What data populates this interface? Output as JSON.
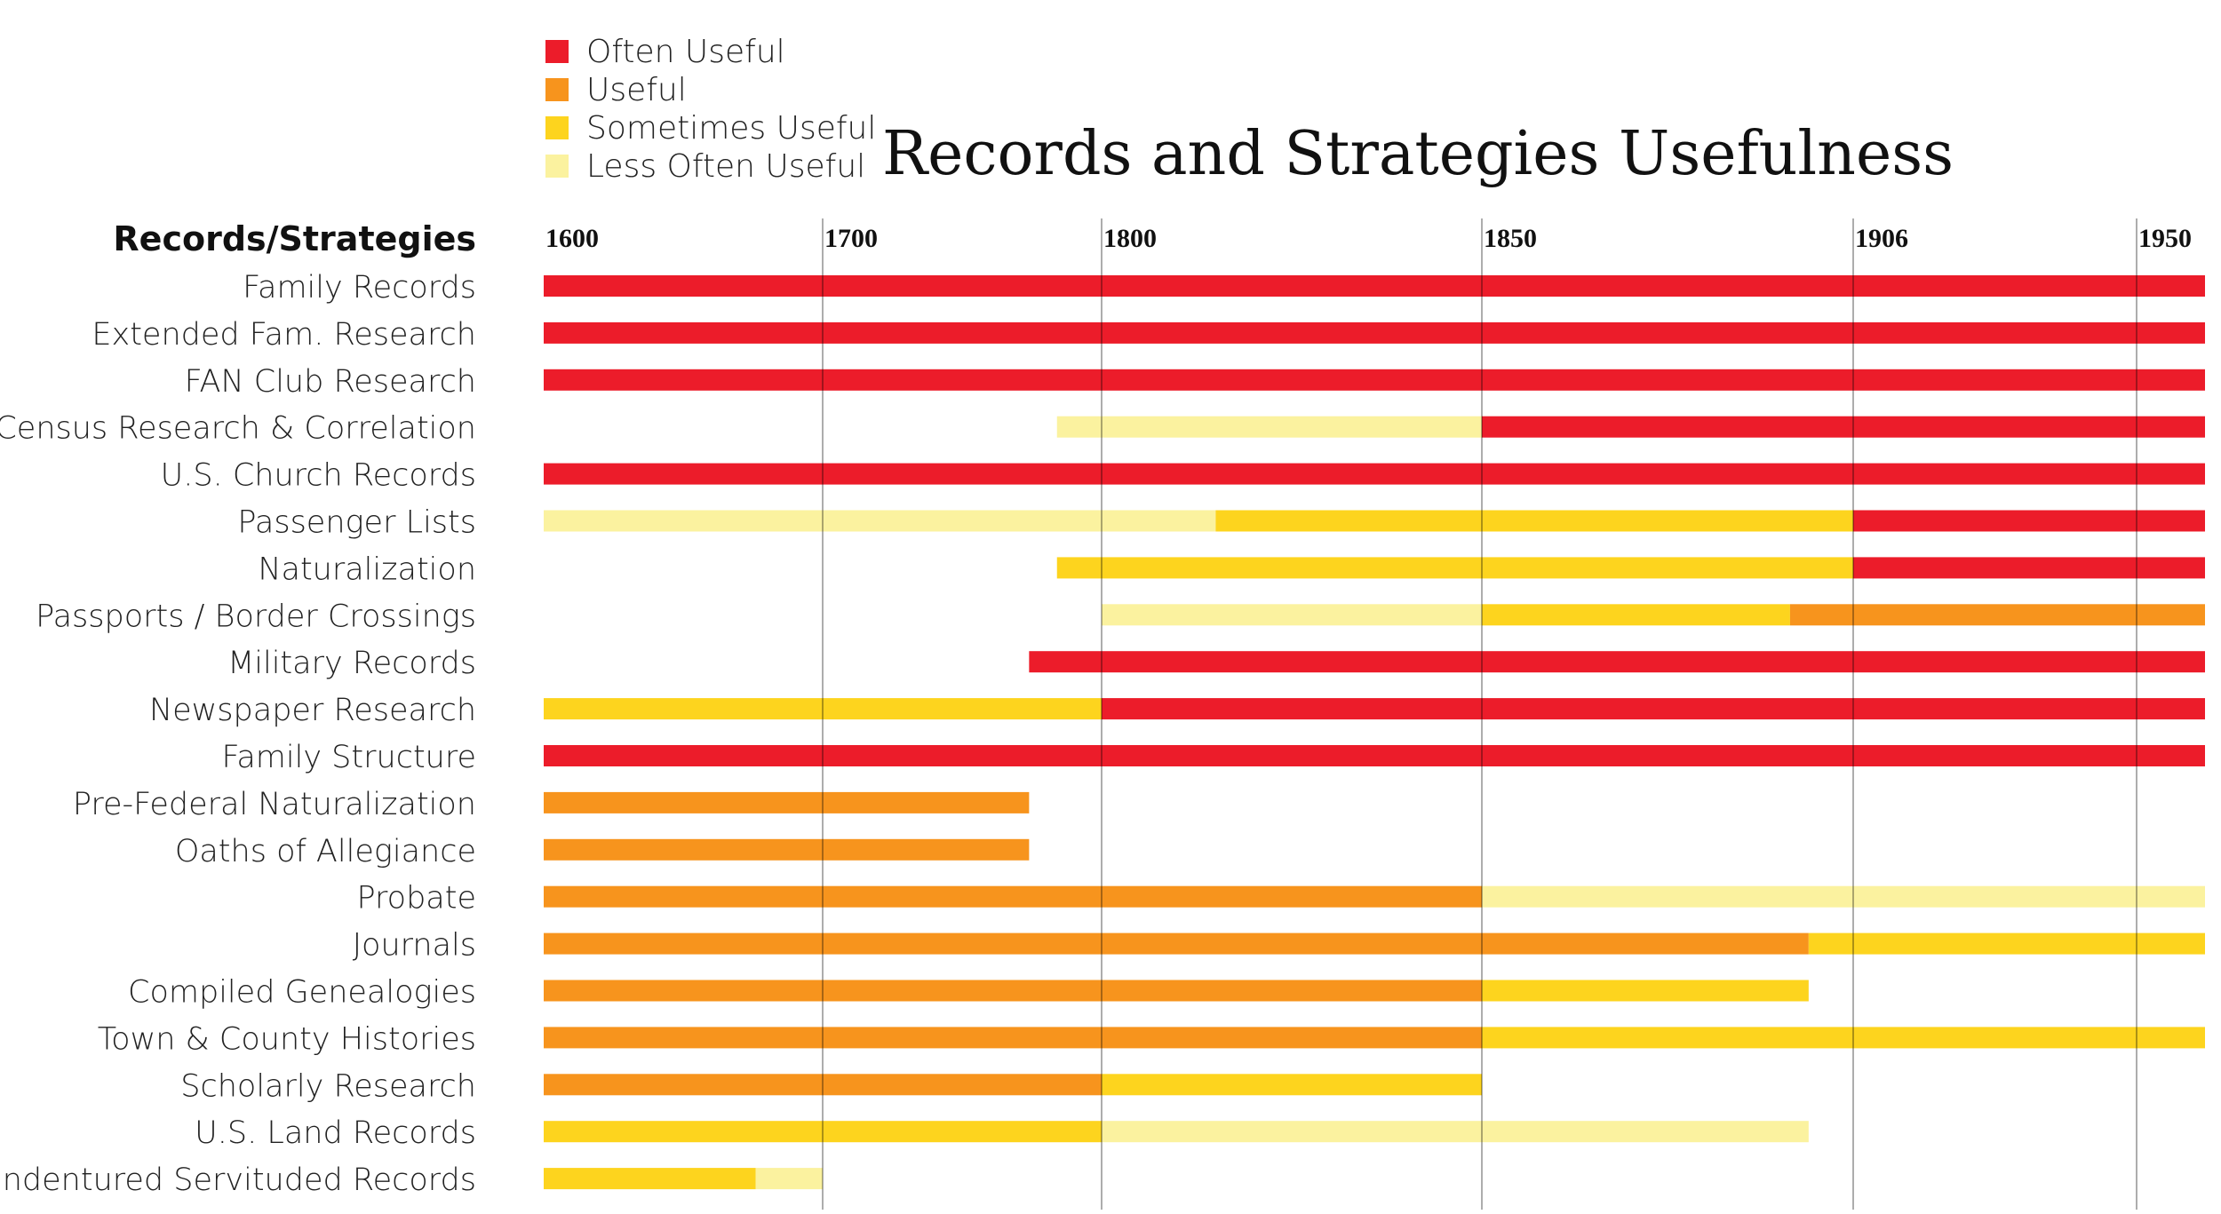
{
  "chart_data": {
    "type": "gantt",
    "title": "Records and Strategies Usefulness",
    "header_label": "Records/Strategies",
    "ticks": [
      {
        "label": "1600",
        "pos": 0
      },
      {
        "label": "1700",
        "pos": 1
      },
      {
        "label": "1800",
        "pos": 2
      },
      {
        "label": "1850",
        "pos": 3
      },
      {
        "label": "1906",
        "pos": 4
      },
      {
        "label": "1950",
        "pos": 5
      }
    ],
    "axis_range": [
      0,
      5.25
    ],
    "legend": [
      {
        "key": "often",
        "label": "Often Useful",
        "color": "#ec1c2a"
      },
      {
        "key": "useful",
        "label": "Useful",
        "color": "#f7941d"
      },
      {
        "key": "sometimes",
        "label": "Sometimes Useful",
        "color": "#fdd41e"
      },
      {
        "key": "less",
        "label": "Less Often Useful",
        "color": "#fbf29f"
      }
    ],
    "rows": [
      {
        "label": "Family Records",
        "segments": [
          {
            "start": 0,
            "end": 5.25,
            "level": "often"
          }
        ]
      },
      {
        "label": "Extended Fam. Research",
        "segments": [
          {
            "start": 0,
            "end": 5.25,
            "level": "often"
          }
        ]
      },
      {
        "label": "FAN Club Research",
        "segments": [
          {
            "start": 0,
            "end": 5.25,
            "level": "often"
          }
        ]
      },
      {
        "label": "Census Research & Correlation",
        "segments": [
          {
            "start": 1.84,
            "end": 3,
            "level": "less"
          },
          {
            "start": 3,
            "end": 5.25,
            "level": "often"
          }
        ]
      },
      {
        "label": "U.S. Church Records",
        "segments": [
          {
            "start": 0,
            "end": 5.25,
            "level": "often"
          }
        ]
      },
      {
        "label": "Passenger Lists",
        "segments": [
          {
            "start": 0,
            "end": 2.3,
            "level": "less"
          },
          {
            "start": 2.3,
            "end": 4,
            "level": "sometimes"
          },
          {
            "start": 4,
            "end": 5.25,
            "level": "often"
          }
        ]
      },
      {
        "label": "Naturalization",
        "segments": [
          {
            "start": 1.84,
            "end": 4,
            "level": "sometimes"
          },
          {
            "start": 4,
            "end": 5.25,
            "level": "often"
          }
        ]
      },
      {
        "label": "Passports / Border Crossings",
        "segments": [
          {
            "start": 2,
            "end": 3,
            "level": "less"
          },
          {
            "start": 3,
            "end": 3.83,
            "level": "sometimes"
          },
          {
            "start": 3.83,
            "end": 5.25,
            "level": "useful"
          }
        ]
      },
      {
        "label": "Military Records",
        "segments": [
          {
            "start": 1.74,
            "end": 5.25,
            "level": "often"
          }
        ]
      },
      {
        "label": "Newspaper Research",
        "segments": [
          {
            "start": 0,
            "end": 2,
            "level": "sometimes"
          },
          {
            "start": 2,
            "end": 5.25,
            "level": "often"
          }
        ]
      },
      {
        "label": "Family Structure",
        "segments": [
          {
            "start": 0,
            "end": 5.25,
            "level": "often"
          }
        ]
      },
      {
        "label": "Pre-Federal Naturalization",
        "segments": [
          {
            "start": 0,
            "end": 1.74,
            "level": "useful"
          }
        ]
      },
      {
        "label": "Oaths of Allegiance",
        "segments": [
          {
            "start": 0,
            "end": 1.74,
            "level": "useful"
          }
        ]
      },
      {
        "label": "Probate",
        "segments": [
          {
            "start": 0,
            "end": 3,
            "level": "useful"
          },
          {
            "start": 3,
            "end": 5.25,
            "level": "less"
          }
        ]
      },
      {
        "label": "Journals",
        "segments": [
          {
            "start": 0,
            "end": 3.88,
            "level": "useful"
          },
          {
            "start": 3.88,
            "end": 5.25,
            "level": "sometimes"
          }
        ]
      },
      {
        "label": "Compiled Genealogies",
        "segments": [
          {
            "start": 0,
            "end": 3,
            "level": "useful"
          },
          {
            "start": 3,
            "end": 3.88,
            "level": "sometimes"
          }
        ]
      },
      {
        "label": "Town & County Histories",
        "segments": [
          {
            "start": 0,
            "end": 3,
            "level": "useful"
          },
          {
            "start": 3,
            "end": 5.25,
            "level": "sometimes"
          }
        ]
      },
      {
        "label": "Scholarly Research",
        "segments": [
          {
            "start": 0,
            "end": 2,
            "level": "useful"
          },
          {
            "start": 2,
            "end": 3,
            "level": "sometimes"
          }
        ]
      },
      {
        "label": "U.S. Land Records",
        "segments": [
          {
            "start": 0,
            "end": 2,
            "level": "sometimes"
          },
          {
            "start": 2,
            "end": 3.88,
            "level": "less"
          }
        ]
      },
      {
        "label": "Indentured Servituded Records",
        "segments": [
          {
            "start": 0,
            "end": 0.76,
            "level": "sometimes"
          },
          {
            "start": 0.76,
            "end": 1,
            "level": "less"
          }
        ]
      }
    ]
  }
}
